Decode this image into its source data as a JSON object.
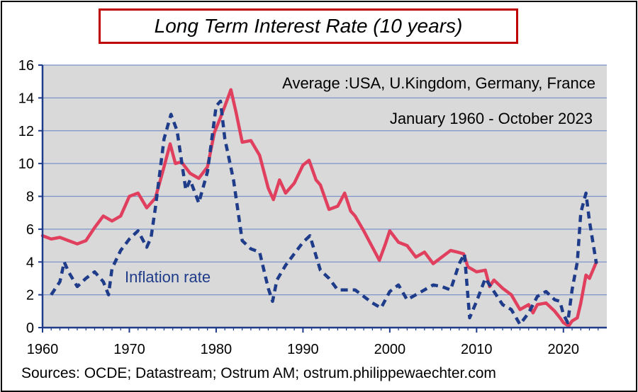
{
  "chart_data": {
    "type": "line",
    "title": "Long Term Interest Rate (10 years)",
    "annotations": [
      "Average :USA, U.Kingdom, Germany, France",
      "January 1960 - October 2023"
    ],
    "inflation_label": "Inflation rate",
    "source": "Sources: OCDE; Datastream; Ostrum AM; ostrum.philippewaechter.com",
    "x_ticks": [
      "1960",
      "1970",
      "1980",
      "1990",
      "2000",
      "2010",
      "2020"
    ],
    "y_ticks": [
      "0",
      "2",
      "4",
      "6",
      "8",
      "10",
      "12",
      "14",
      "16"
    ],
    "xlim": [
      1960,
      2025
    ],
    "ylim": [
      0,
      16
    ],
    "grid": true,
    "series": [
      {
        "name": "Long Term Interest Rate",
        "color": "#e0405e",
        "style": "solid",
        "x": [
          1960,
          1961,
          1962,
          1963,
          1964,
          1965,
          1966,
          1967,
          1968,
          1969,
          1970,
          1971,
          1972,
          1973,
          1974,
          1974.7,
          1975.3,
          1976,
          1977,
          1978,
          1979,
          1979.8,
          1980.5,
          1981,
          1981.7,
          1982.3,
          1983,
          1984,
          1985,
          1986,
          1986.6,
          1987.3,
          1988,
          1989,
          1990,
          1990.7,
          1991.5,
          1992,
          1993,
          1994,
          1994.8,
          1995.5,
          1996,
          1997,
          1998,
          1998.8,
          1999.5,
          2000,
          2001,
          2002,
          2003,
          2004,
          2005,
          2006,
          2007,
          2007.8,
          2008.5,
          2009,
          2010,
          2011,
          2011.5,
          2012,
          2013,
          2014,
          2015,
          2016,
          2016.5,
          2017,
          2018,
          2019,
          2019.6,
          2020,
          2020.6,
          2021,
          2021.6,
          2022,
          2022.6,
          2023,
          2023.8
        ],
        "values": [
          5.6,
          5.4,
          5.5,
          5.3,
          5.1,
          5.3,
          6.1,
          6.8,
          6.5,
          6.8,
          8.0,
          8.2,
          7.3,
          7.9,
          9.8,
          11.2,
          10.0,
          10.1,
          9.4,
          9.1,
          9.8,
          11.9,
          12.8,
          13.5,
          14.5,
          13.1,
          11.3,
          11.4,
          10.5,
          8.5,
          7.8,
          9.0,
          8.2,
          8.8,
          9.9,
          10.2,
          9.0,
          8.7,
          7.2,
          7.4,
          8.2,
          7.1,
          6.8,
          5.9,
          4.9,
          4.1,
          5.1,
          5.9,
          5.2,
          5.0,
          4.3,
          4.6,
          3.9,
          4.3,
          4.7,
          4.6,
          4.5,
          3.7,
          3.4,
          3.5,
          2.5,
          2.9,
          2.4,
          2.0,
          1.1,
          1.4,
          0.9,
          1.4,
          1.5,
          1.0,
          0.6,
          0.3,
          0.1,
          0.4,
          0.6,
          1.5,
          3.2,
          3.0,
          4.0
        ]
      },
      {
        "name": "Inflation rate",
        "color": "#1f3c8a",
        "style": "dashed",
        "x": [
          1961,
          1962,
          1962.5,
          1963,
          1964,
          1965,
          1966,
          1967,
          1967.6,
          1968,
          1969,
          1970,
          1971,
          1972,
          1972.5,
          1973,
          1974,
          1974.8,
          1975.5,
          1976.5,
          1977,
          1978,
          1979,
          1980,
          1980.5,
          1981,
          1982,
          1983,
          1984,
          1985,
          1986,
          1986.5,
          1987,
          1988,
          1989,
          1990,
          1990.8,
          1992,
          1993,
          1994,
          1995,
          1996,
          1997,
          1998,
          1999,
          2000,
          2001,
          2002,
          2003,
          2004,
          2005,
          2006,
          2007,
          2008,
          2008.6,
          2009.2,
          2010,
          2011,
          2012,
          2013,
          2014,
          2015,
          2016,
          2017,
          2018,
          2019,
          2019.6,
          2020,
          2020.5,
          2021,
          2021.6,
          2022,
          2022.6,
          2023,
          2023.8
        ],
        "values": [
          2.0,
          2.8,
          4.0,
          3.4,
          2.5,
          3.0,
          3.4,
          2.8,
          2.0,
          3.6,
          4.7,
          5.4,
          5.9,
          4.9,
          5.5,
          7.3,
          11.5,
          13.0,
          12.0,
          8.4,
          9.0,
          7.6,
          9.5,
          13.5,
          13.8,
          11.5,
          9.0,
          5.3,
          4.8,
          4.6,
          2.4,
          1.6,
          2.9,
          3.8,
          4.5,
          5.2,
          5.6,
          3.5,
          3.0,
          2.3,
          2.3,
          2.3,
          1.9,
          1.5,
          1.2,
          2.2,
          2.6,
          1.7,
          2.0,
          2.3,
          2.6,
          2.5,
          2.3,
          3.9,
          4.5,
          0.6,
          1.6,
          3.0,
          2.2,
          1.4,
          1.1,
          0.2,
          0.9,
          1.9,
          2.2,
          1.7,
          1.6,
          0.8,
          0.3,
          2.3,
          4.0,
          7.0,
          8.2,
          6.5,
          3.9
        ]
      }
    ]
  }
}
